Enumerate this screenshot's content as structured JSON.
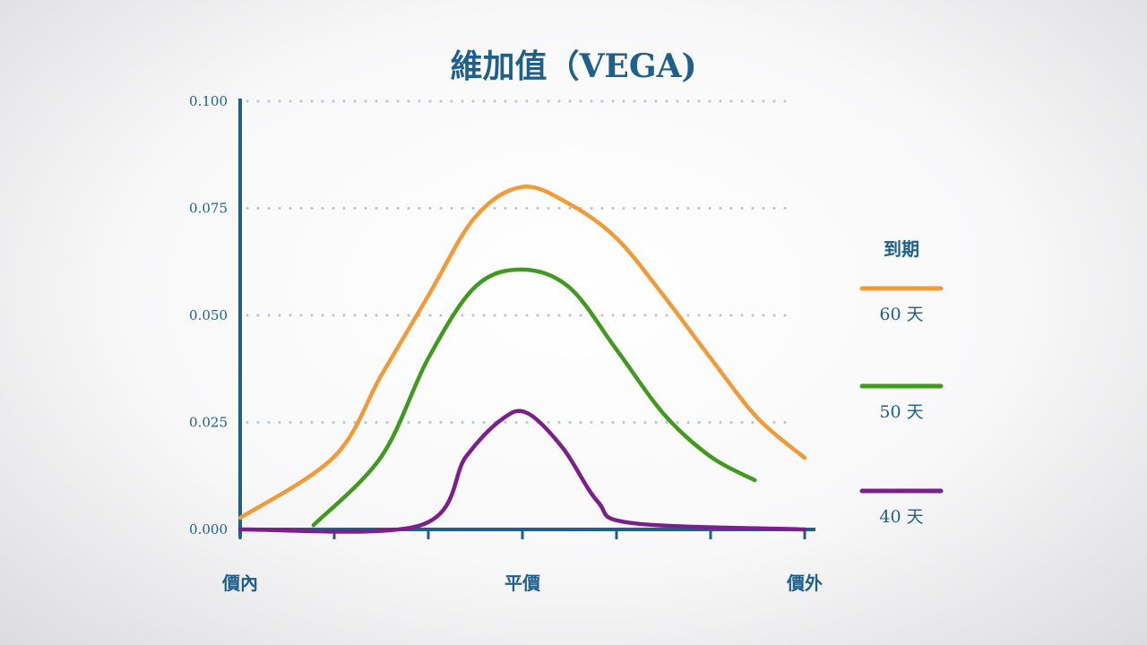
{
  "chart_data": {
    "type": "line",
    "title": "維加值（VEGA)",
    "xlabel": "",
    "ylabel": "",
    "ylim": [
      0,
      0.1
    ],
    "xlim": [
      0,
      6
    ],
    "yticks": [
      "0.000",
      "0.025",
      "0.050",
      "0.075",
      "0.100"
    ],
    "x_category_labels": [
      {
        "x": 0,
        "label": "價內"
      },
      {
        "x": 3,
        "label": "平價"
      },
      {
        "x": 6,
        "label": "價外"
      }
    ],
    "grid": "dotted horizontal",
    "legend": {
      "title": "到期",
      "placement": "right"
    },
    "series": [
      {
        "name": "60 天",
        "color": "#f19a38",
        "points": [
          [
            0,
            0.0027
          ],
          [
            1,
            0.017
          ],
          [
            1.5,
            0.036
          ],
          [
            2,
            0.0546
          ],
          [
            2.5,
            0.073
          ],
          [
            3,
            0.08
          ],
          [
            3.5,
            0.076
          ],
          [
            4,
            0.068
          ],
          [
            4.5,
            0.0546
          ],
          [
            5,
            0.04
          ],
          [
            5.5,
            0.026
          ],
          [
            6,
            0.0167
          ]
        ]
      },
      {
        "name": "50 天",
        "color": "#3f9a1f",
        "points": [
          [
            0.78,
            0.001
          ],
          [
            1.5,
            0.017
          ],
          [
            2,
            0.04
          ],
          [
            2.5,
            0.0567
          ],
          [
            3,
            0.0607
          ],
          [
            3.5,
            0.0565
          ],
          [
            4,
            0.042
          ],
          [
            4.5,
            0.027
          ],
          [
            5,
            0.017
          ],
          [
            5.47,
            0.0115
          ]
        ]
      },
      {
        "name": "40 天",
        "color": "#7a1f8c",
        "points": [
          [
            0,
            0
          ],
          [
            1.92,
            0.001
          ],
          [
            2.4,
            0.017
          ],
          [
            2.78,
            0.0257
          ],
          [
            3.05,
            0.0272
          ],
          [
            3.43,
            0.019
          ],
          [
            3.8,
            0.0065
          ],
          [
            4.16,
            0.0015
          ],
          [
            6,
            0
          ]
        ]
      }
    ]
  }
}
